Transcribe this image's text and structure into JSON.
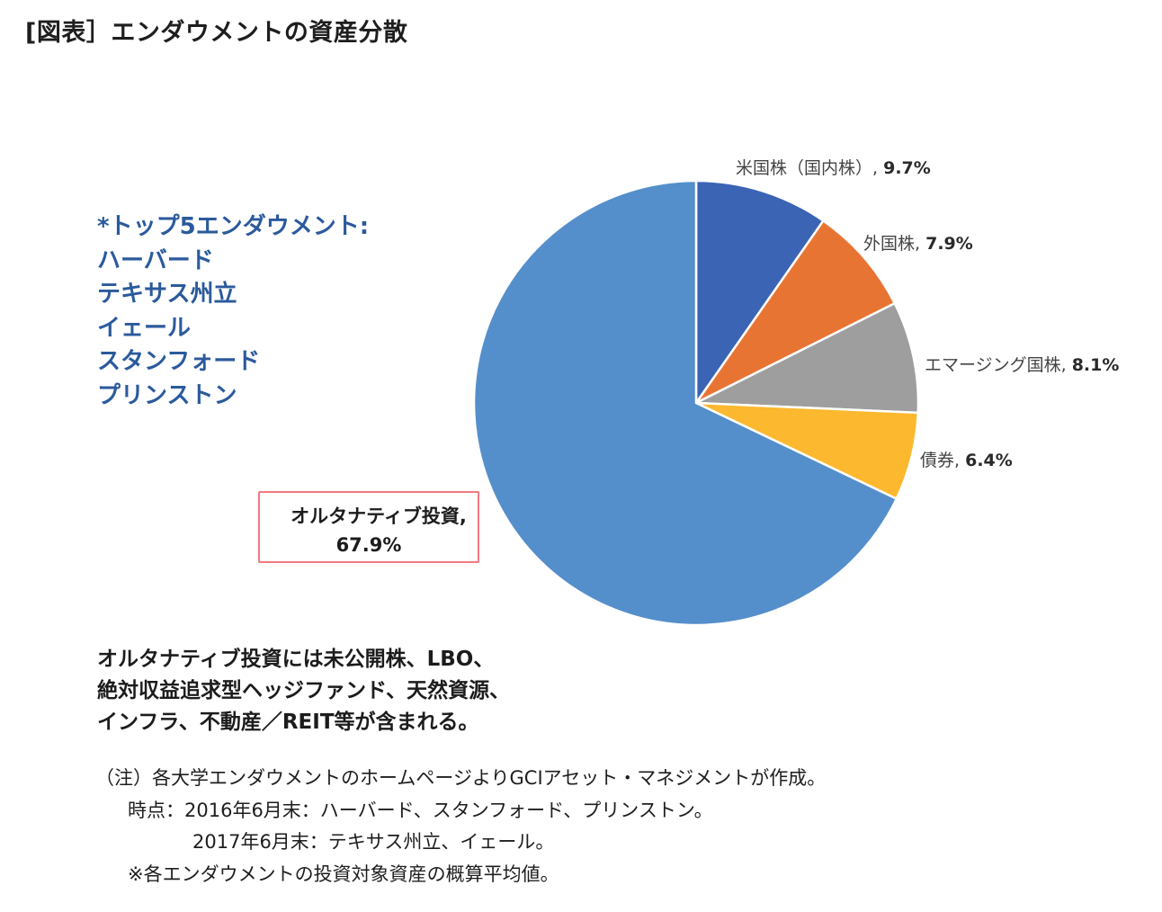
{
  "title": "[図表］エンダウメントの資産分散",
  "top5": {
    "heading": "*トップ5エンダウメント:",
    "schools": [
      "ハーバード",
      "テキサス州立",
      "イェール",
      "スタンフォード",
      "プリンストン"
    ]
  },
  "chart_data": {
    "type": "pie",
    "title": "エンダウメントの資産分散",
    "start_angle_deg": 0,
    "direction": "clockwise",
    "slices": [
      {
        "label": "米国株（国内株）",
        "value": 9.7,
        "display": "9.7%",
        "color": "#3b64b4"
      },
      {
        "label": "外国株",
        "value": 7.9,
        "display": "7.9%",
        "color": "#e87434"
      },
      {
        "label": "エマージング国株",
        "value": 8.1,
        "display": "8.1%",
        "color": "#9e9e9e"
      },
      {
        "label": "債券",
        "value": 6.4,
        "display": "6.4%",
        "color": "#fcb82f"
      },
      {
        "label": "オルタナティブ投資",
        "value": 67.9,
        "display": "67.9%",
        "color": "#548fcb"
      }
    ],
    "categories": [
      "米国株（国内株）",
      "外国株",
      "エマージング国株",
      "債券",
      "オルタナティブ投資"
    ],
    "values": [
      9.7,
      7.9,
      8.1,
      6.4,
      67.9
    ],
    "units": "%"
  },
  "labels": {
    "us_stocks": {
      "name": "米国株（国内株）, ",
      "pct": "9.7%"
    },
    "foreign_stocks": {
      "name": "外国株, ",
      "pct": "7.9%"
    },
    "emerging_stocks": {
      "name": "エマージング国株, ",
      "pct": "8.1%"
    },
    "bonds": {
      "name": "債券, ",
      "pct": "6.4%"
    },
    "alternatives": {
      "name": "オルタナティブ投資,",
      "pct": "67.9%"
    }
  },
  "alt_note": [
    "オルタナティブ投資には未公開株、LBO、",
    "絶対収益追求型ヘッジファンド、天然資源、",
    "インフラ、不動産／REIT等が含まれる。"
  ],
  "footnote": {
    "line1": "（注）各大学エンダウメントのホームページよりGCIアセット・マネジメントが作成。",
    "line2": "時点：2016年6月末：ハーバード、スタンフォード、プリンストン。",
    "line3": "2017年6月末：テキサス州立、イェール。",
    "line4": "※各エンダウメントの投資対象資産の概算平均値。"
  }
}
